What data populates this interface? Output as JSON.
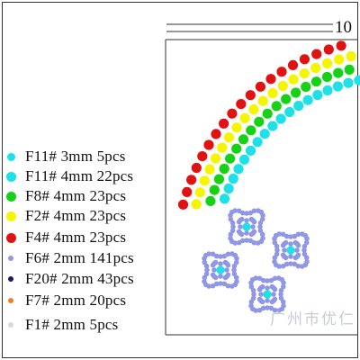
{
  "dimension_label": "10",
  "watermark_text": "广州市优仁",
  "colors": {
    "turquoise": "#1ee0e8",
    "green": "#16d216",
    "yellow": "#f5f500",
    "red": "#e01212",
    "lavender": "#8f97e6",
    "navy": "#1a1a70",
    "orange": "#f0801c",
    "lightgray": "#d8dadc"
  },
  "legend": [
    {
      "label": "F11# 3mm 5pcs",
      "color": "turquoise",
      "size": "small"
    },
    {
      "label": "F11# 4mm 22pcs",
      "color": "turquoise",
      "size": "large"
    },
    {
      "label": "F8# 4mm 23pcs",
      "color": "green",
      "size": "large"
    },
    {
      "label": "F2# 4mm 23pcs",
      "color": "yellow",
      "size": "large"
    },
    {
      "label": "F4# 4mm 23pcs",
      "color": "red",
      "size": "large"
    },
    {
      "label": "F6# 2mm 141pcs",
      "color": "lavender",
      "size": "tiny"
    },
    {
      "label": "F20# 2mm 43pcs",
      "color": "navy",
      "size": "tiny"
    },
    {
      "label": "F7# 2mm 20pcs",
      "color": "orange",
      "size": "tiny"
    },
    {
      "label": "F1# 2mm 5pcs",
      "color": "lightgray",
      "size": "tiny"
    }
  ]
}
